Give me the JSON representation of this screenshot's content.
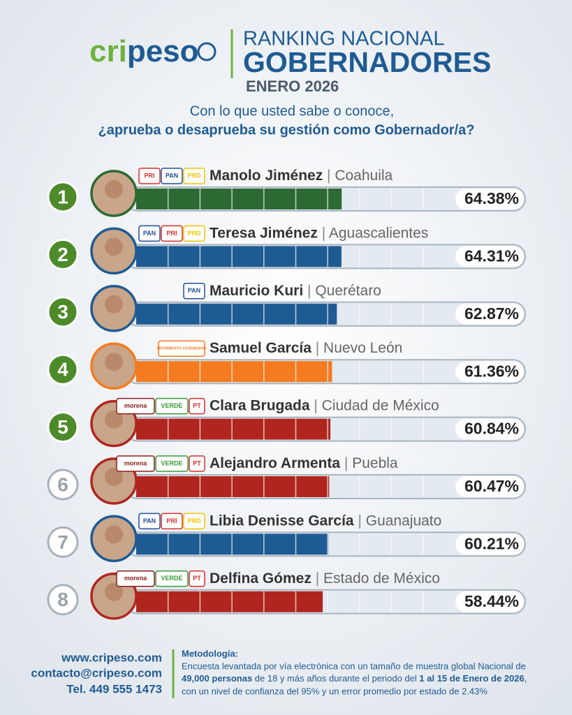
{
  "header": {
    "brand_a": "cri",
    "brand_b": "peso",
    "line1": "RANKING NACIONAL",
    "line2": "GOBERNADORES",
    "line3": "ENERO 2026",
    "question1": "Con lo que usted sabe o conoce,",
    "question2": "¿aprueba o desaprueba su gestión como Gobernador/a?"
  },
  "chart_data": {
    "type": "bar",
    "ranks": [
      "1",
      "2",
      "3",
      "4",
      "5",
      "6",
      "7",
      "8"
    ],
    "categories": [
      "Manolo Jiménez",
      "Teresa Jiménez",
      "Mauricio Kuri",
      "Samuel García",
      "Clara Brugada",
      "Alejandro Armenta",
      "Libia Denisse García",
      "Delfina Gómez"
    ],
    "regions": [
      "Coahuila",
      "Aguascalientes",
      "Querétaro",
      "Nuevo León",
      "Ciudad de México",
      "Puebla",
      "Guanajuato",
      "Estado de México"
    ],
    "parties": [
      [
        "PRI",
        "PAN",
        "PRD"
      ],
      [
        "PAN",
        "PRI",
        "PRD"
      ],
      [
        "PAN"
      ],
      [
        "MOVIMIENTO CIUDADANO"
      ],
      [
        "morena",
        "VERDE",
        "PT"
      ],
      [
        "morena",
        "VERDE",
        "PT"
      ],
      [
        "PAN",
        "PRI",
        "PRD"
      ],
      [
        "morena",
        "VERDE",
        "PT"
      ]
    ],
    "values": [
      64.38,
      64.31,
      62.87,
      61.36,
      60.84,
      60.47,
      60.21,
      58.44
    ],
    "value_labels": [
      "64.38%",
      "64.31%",
      "62.87%",
      "61.36%",
      "60.84%",
      "60.47%",
      "60.21%",
      "58.44%"
    ],
    "colors": [
      "#2d6a33",
      "#1f5b93",
      "#1f5b93",
      "#f47b20",
      "#b0261f",
      "#b0261f",
      "#1f5b93",
      "#b0261f"
    ],
    "xlim": [
      0,
      100
    ],
    "xticks": [
      0,
      10,
      20,
      30,
      40,
      50,
      60,
      70,
      80,
      90,
      100
    ]
  },
  "footer": {
    "web": "www.cripeso.com",
    "email": "contacto@cripeso.com",
    "phone": "Tel. 449 555 1473",
    "method_title": "Metodología:",
    "m1": "Encuesta levantada por vía electrónica con un tamaño de muestra global Nacional de",
    "m2a": "49,000 personas",
    "m2b": " de 18 y más años durante el periodo del ",
    "m2c": "1 al 15 de Enero de 2026",
    "m2d": ",",
    "m3": "con un nivel de confianza del 95% y un error promedio por estado de 2.43%"
  }
}
